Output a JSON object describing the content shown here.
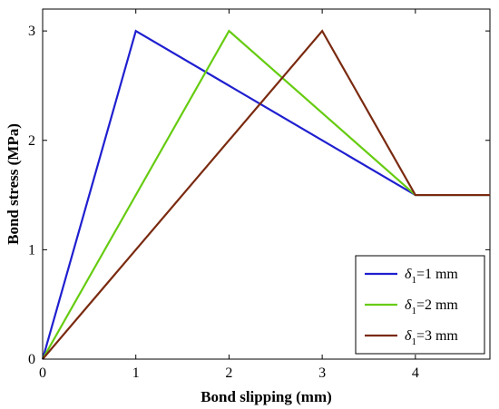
{
  "chart_data": {
    "type": "line",
    "title": "",
    "xlabel": "Bond slipping (mm)",
    "ylabel": "Bond stress (MPa)",
    "xlim": [
      0,
      4.8
    ],
    "ylim": [
      0,
      3.2
    ],
    "xticks": [
      0,
      1,
      2,
      3,
      4
    ],
    "yticks": [
      0,
      1,
      2,
      3
    ],
    "grid": false,
    "legend_position": "bottom-right",
    "series": [
      {
        "legend_symbol": "δ",
        "legend_subscript": "1",
        "legend_suffix": "=1 mm",
        "color": "#1f1fd0",
        "x": [
          0,
          1,
          4,
          4.8
        ],
        "y": [
          0,
          3,
          1.5,
          1.5
        ]
      },
      {
        "legend_symbol": "δ",
        "legend_subscript": "1",
        "legend_suffix": "=2 mm",
        "color": "#66cc11",
        "x": [
          0,
          2,
          4,
          4.8
        ],
        "y": [
          0,
          3,
          1.5,
          1.5
        ]
      },
      {
        "legend_symbol": "δ",
        "legend_subscript": "1",
        "legend_suffix": "=3 mm",
        "color": "#7a2a10",
        "x": [
          0,
          3,
          4,
          4.8
        ],
        "y": [
          0,
          3,
          1.5,
          1.5
        ]
      }
    ]
  }
}
